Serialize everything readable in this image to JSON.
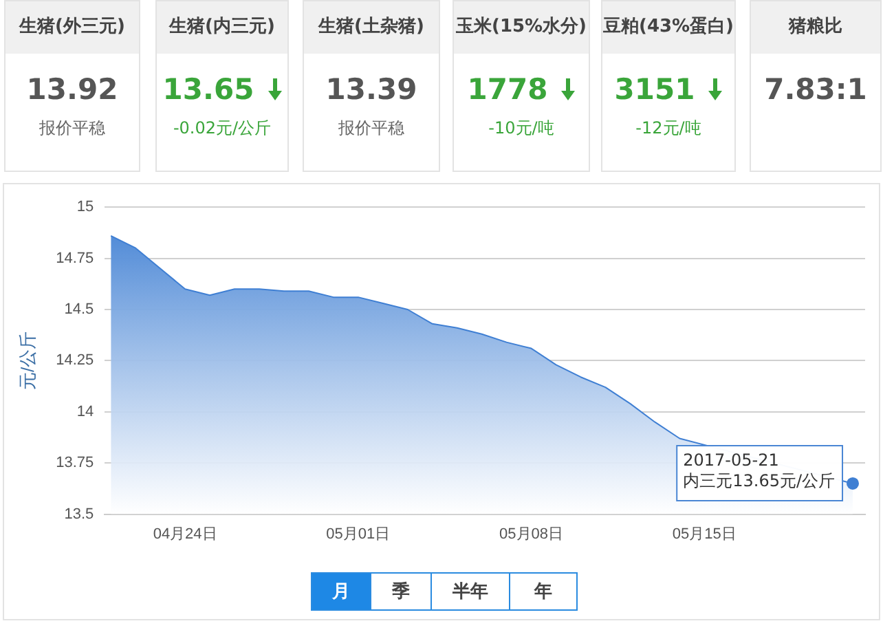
{
  "chart_data": [
    {
      "type": "other",
      "title": "生猪(外三元)",
      "annotations": [
        "13.92",
        "报价平稳"
      ]
    },
    {
      "type": "other",
      "title": "生猪(内三元)",
      "annotations": [
        "13.65",
        "-0.02元/公斤"
      ],
      "color": "#3aa53a"
    },
    {
      "type": "other",
      "title": "生猪(土杂猪)",
      "annotations": [
        "13.39",
        "报价平稳"
      ]
    },
    {
      "type": "other",
      "title": "玉米(15%水分)",
      "annotations": [
        "1778",
        "-10元/吨"
      ],
      "color": "#3aa53a"
    },
    {
      "type": "other",
      "title": "豆粕(43%蛋白)",
      "annotations": [
        "3151",
        "-12元/吨"
      ],
      "color": "#3aa53a"
    },
    {
      "type": "other",
      "title": "猪粮比",
      "annotations": [
        "7.83:1"
      ]
    },
    {
      "type": "area",
      "ylabel": "元/公斤",
      "x": [
        "2017-04-21",
        "2017-04-22",
        "2017-04-23",
        "2017-04-24",
        "2017-04-25",
        "2017-04-26",
        "2017-04-27",
        "2017-04-28",
        "2017-04-29",
        "2017-04-30",
        "2017-05-01",
        "2017-05-02",
        "2017-05-03",
        "2017-05-04",
        "2017-05-05",
        "2017-05-06",
        "2017-05-07",
        "2017-05-08",
        "2017-05-09",
        "2017-05-10",
        "2017-05-11",
        "2017-05-12",
        "2017-05-13",
        "2017-05-14",
        "2017-05-15",
        "2017-05-16",
        "2017-05-17",
        "2017-05-18",
        "2017-05-19",
        "2017-05-20",
        "2017-05-21"
      ],
      "series": [
        {
          "color": "#3f7fd3",
          "values": [
            14.86,
            14.8,
            14.7,
            14.6,
            14.57,
            14.6,
            14.6,
            14.59,
            14.59,
            14.56,
            14.56,
            14.53,
            14.5,
            14.43,
            14.41,
            14.38,
            14.34,
            14.31,
            14.23,
            14.17,
            14.12,
            14.04,
            13.95,
            13.87,
            null,
            null,
            null,
            null,
            null,
            null,
            13.65
          ]
        }
      ],
      "xlim": [
        "2017-04-20T18:00",
        "2017-05-21T12:00"
      ],
      "xticks": [
        {
          "value": "2017-04-24",
          "label": "04月24日"
        },
        {
          "value": "2017-05-01",
          "label": "05月01日"
        },
        {
          "value": "2017-05-08",
          "label": "05月08日"
        },
        {
          "value": "2017-05-15",
          "label": "05月15日"
        }
      ],
      "ylim": [
        13.5,
        15
      ],
      "yticks": [
        13.5,
        13.75,
        14,
        14.25,
        14.5,
        14.75,
        15
      ],
      "grid": "y",
      "legend": false,
      "annotations": [
        {
          "text": "2017-05-21\n内三元13.65元/公斤",
          "x": "2017-05-21",
          "y": 13.65
        },
        "月",
        "季",
        "半年",
        "年"
      ]
    }
  ]
}
